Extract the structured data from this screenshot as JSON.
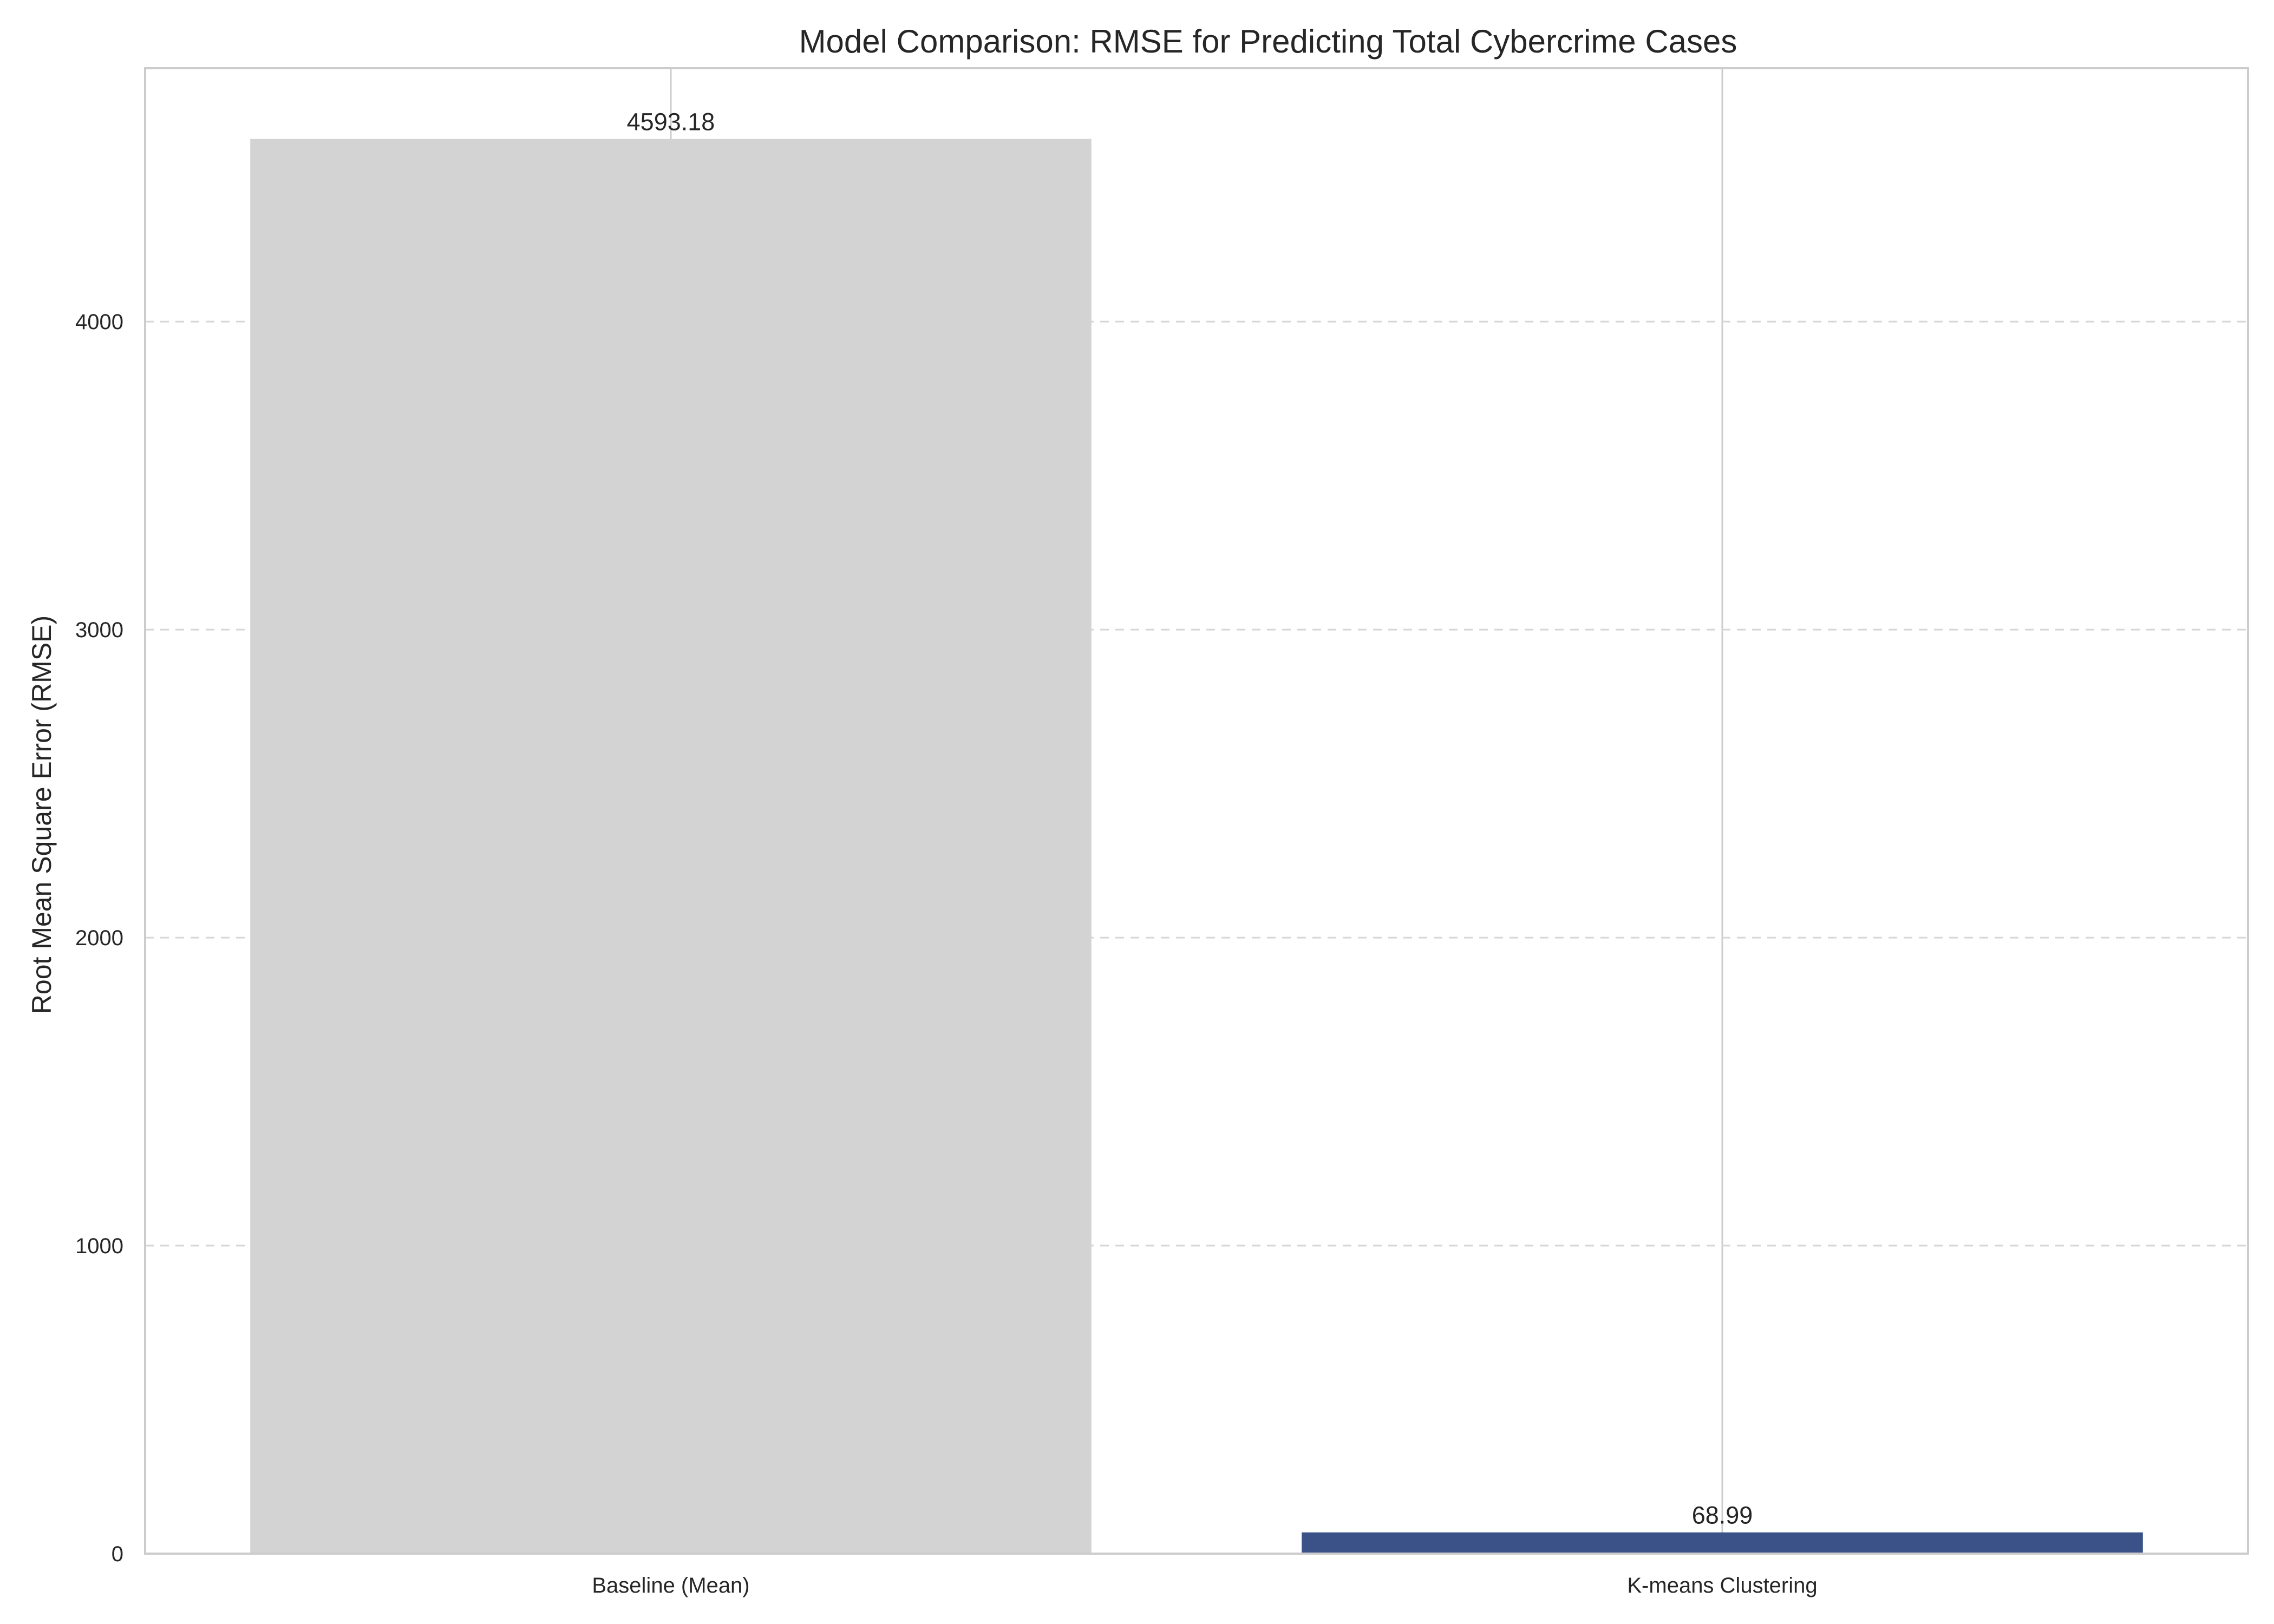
{
  "chart_data": {
    "type": "bar",
    "title": "Model Comparison: RMSE for Predicting Total Cybercrime Cases",
    "xlabel": "",
    "ylabel": "Root Mean Square Error (RMSE)",
    "categories": [
      "Baseline (Mean)",
      "K-means Clustering"
    ],
    "values": [
      4593.18,
      68.99
    ],
    "value_labels": [
      "4593.18",
      "68.99"
    ],
    "yticks": [
      0,
      1000,
      2000,
      3000,
      4000
    ],
    "ytick_labels": [
      "0",
      "1000",
      "2000",
      "3000",
      "4000"
    ],
    "ylim": [
      0,
      4822.8
    ],
    "colors": [
      "#d3d3d3",
      "#3b5289"
    ],
    "grid": true,
    "legend": false
  }
}
